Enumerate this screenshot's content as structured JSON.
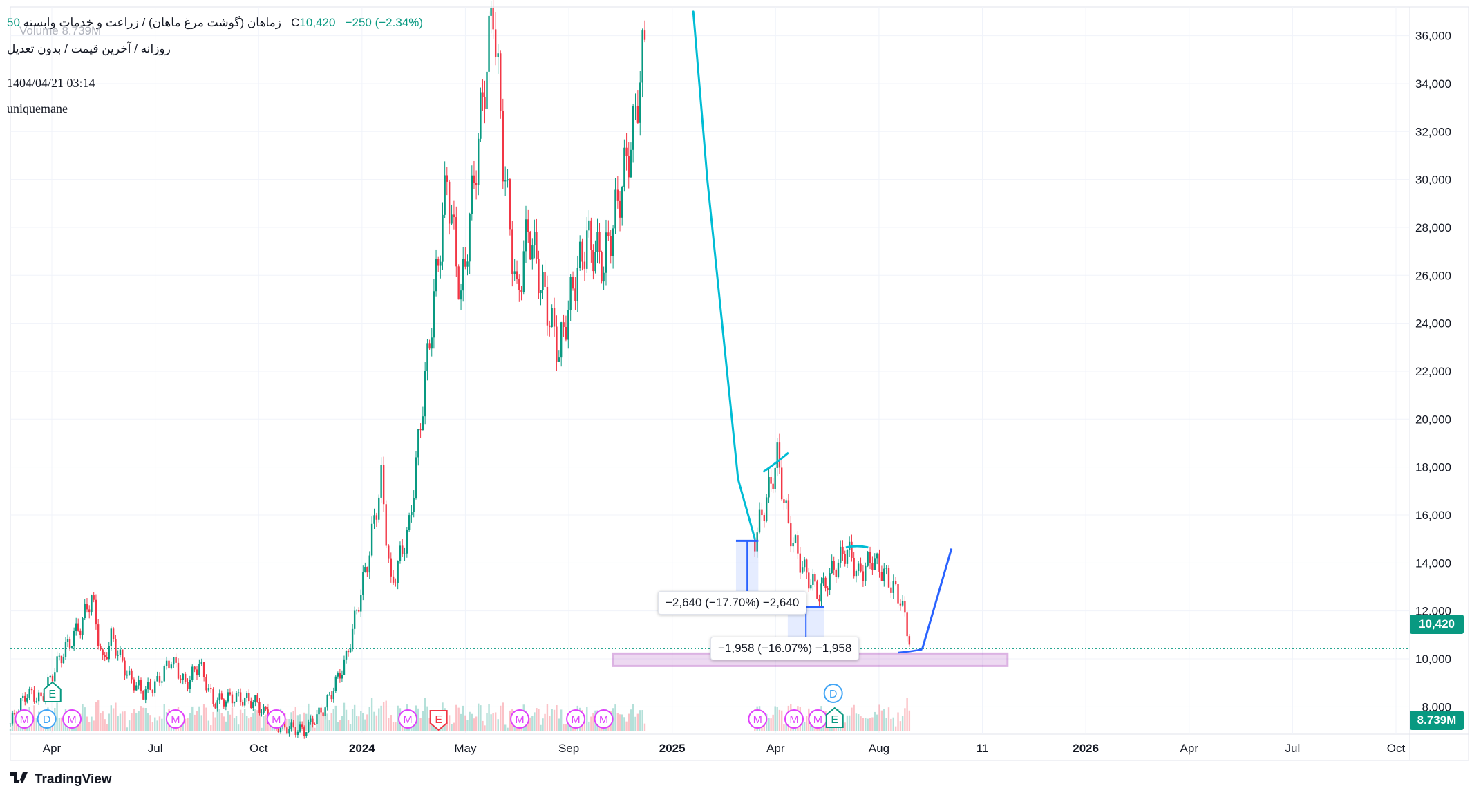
{
  "legend": {
    "symbol_line": "زماهان (گوشت مرغ ماهان) / زراعت و خدمات وابسته",
    "ohlc_prefix_value": "50",
    "close_label": "C",
    "close_value": "10,420",
    "change": "−250 (−2.34%)",
    "volume_label": "Volume",
    "volume_value": "8.739M",
    "interval_line": "روزانه / آخرین قیمت / بدون تعدیل"
  },
  "meta": {
    "date": "1404/04/21 03:14",
    "author": "uniquemane"
  },
  "brand": {
    "name": "TradingView",
    "logo_icon": "tradingview-logo-icon"
  },
  "price_tag": {
    "value": "10,420",
    "color": "#089981"
  },
  "volume_tag": {
    "value": "8.739M",
    "color": "#089981"
  },
  "measure_labels": [
    {
      "text": "−2,640 (−17.70%) −2,640"
    },
    {
      "text": "−1,958 (−16.07%) −1,958"
    }
  ],
  "colors": {
    "up": "#089981",
    "down": "#f23645",
    "drawing_cyan": "#00bcd4",
    "drawing_blue": "#2962ff",
    "support_zone": "#9c27b0"
  },
  "chart_data": {
    "type": "candlestick",
    "y_axis": {
      "ticks": [
        "8,000",
        "10,000",
        "12,000",
        "14,000",
        "16,000",
        "18,000",
        "20,000",
        "22,000",
        "24,000",
        "26,000",
        "28,000",
        "30,000",
        "32,000",
        "34,000",
        "36,000"
      ],
      "range": [
        7000,
        37200
      ]
    },
    "x_axis": {
      "ticks": [
        {
          "label": "Apr",
          "bold": false
        },
        {
          "label": "Jul",
          "bold": false
        },
        {
          "label": "Oct",
          "bold": false
        },
        {
          "label": "2024",
          "bold": true
        },
        {
          "label": "May",
          "bold": false
        },
        {
          "label": "Sep",
          "bold": false
        },
        {
          "label": "2025",
          "bold": true
        },
        {
          "label": "Apr",
          "bold": false
        },
        {
          "label": "Aug",
          "bold": false
        },
        {
          "label": "11",
          "bold": false
        },
        {
          "label": "2026",
          "bold": true
        },
        {
          "label": "Apr",
          "bold": false
        },
        {
          "label": "Jul",
          "bold": false
        },
        {
          "label": "Oct",
          "bold": false
        }
      ]
    },
    "price_path": [
      {
        "t": 0.0,
        "p": 7300
      },
      {
        "t": 0.012,
        "p": 8600
      },
      {
        "t": 0.022,
        "p": 8300
      },
      {
        "t": 0.035,
        "p": 10000
      },
      {
        "t": 0.05,
        "p": 11400
      },
      {
        "t": 0.058,
        "p": 12600
      },
      {
        "t": 0.066,
        "p": 9800
      },
      {
        "t": 0.072,
        "p": 10900
      },
      {
        "t": 0.085,
        "p": 9200
      },
      {
        "t": 0.095,
        "p": 8600
      },
      {
        "t": 0.105,
        "p": 9000
      },
      {
        "t": 0.115,
        "p": 10000
      },
      {
        "t": 0.125,
        "p": 8900
      },
      {
        "t": 0.135,
        "p": 9800
      },
      {
        "t": 0.145,
        "p": 8200
      },
      {
        "t": 0.16,
        "p": 8400
      },
      {
        "t": 0.175,
        "p": 8200
      },
      {
        "t": 0.19,
        "p": 7200
      },
      {
        "t": 0.21,
        "p": 7000
      },
      {
        "t": 0.225,
        "p": 8000
      },
      {
        "t": 0.24,
        "p": 10000
      },
      {
        "t": 0.255,
        "p": 14000
      },
      {
        "t": 0.265,
        "p": 17500
      },
      {
        "t": 0.272,
        "p": 13000
      },
      {
        "t": 0.285,
        "p": 15500
      },
      {
        "t": 0.298,
        "p": 22500
      },
      {
        "t": 0.312,
        "p": 30000
      },
      {
        "t": 0.322,
        "p": 25000
      },
      {
        "t": 0.336,
        "p": 32500
      },
      {
        "t": 0.345,
        "p": 37300
      },
      {
        "t": 0.352,
        "p": 31000
      },
      {
        "t": 0.362,
        "p": 25000
      },
      {
        "t": 0.37,
        "p": 28000
      },
      {
        "t": 0.382,
        "p": 25000
      },
      {
        "t": 0.392,
        "p": 22800
      },
      {
        "t": 0.402,
        "p": 25500
      },
      {
        "t": 0.412,
        "p": 27500
      },
      {
        "t": 0.424,
        "p": 26500
      },
      {
        "t": 0.434,
        "p": 29000
      },
      {
        "t": 0.445,
        "p": 32000
      },
      {
        "t": 0.455,
        "p": 36500
      }
    ],
    "gap_segment": [
      {
        "t": 0.488,
        "p": 37000
      },
      {
        "t": 0.498,
        "p": 30000
      },
      {
        "t": 0.52,
        "p": 17500
      }
    ],
    "recent_path": [
      {
        "t": 0.532,
        "p": 15000
      },
      {
        "t": 0.542,
        "p": 17000
      },
      {
        "t": 0.548,
        "p": 18400
      },
      {
        "t": 0.556,
        "p": 15500
      },
      {
        "t": 0.566,
        "p": 13800
      },
      {
        "t": 0.578,
        "p": 12700
      },
      {
        "t": 0.59,
        "p": 13900
      },
      {
        "t": 0.598,
        "p": 14600
      },
      {
        "t": 0.606,
        "p": 13500
      },
      {
        "t": 0.616,
        "p": 14200
      },
      {
        "t": 0.626,
        "p": 13400
      },
      {
        "t": 0.636,
        "p": 12500
      },
      {
        "t": 0.644,
        "p": 10420
      }
    ],
    "event_badges": [
      {
        "t": 0.01,
        "label": "M",
        "kind": "M"
      },
      {
        "t": 0.026,
        "label": "D",
        "kind": "D"
      },
      {
        "t": 0.044,
        "label": "M",
        "kind": "M"
      },
      {
        "t": 0.03,
        "label": "E",
        "kind": "E-up"
      },
      {
        "t": 0.118,
        "label": "M",
        "kind": "M"
      },
      {
        "t": 0.19,
        "label": "M",
        "kind": "M"
      },
      {
        "t": 0.284,
        "label": "M",
        "kind": "M"
      },
      {
        "t": 0.306,
        "label": "E",
        "kind": "E-down"
      },
      {
        "t": 0.364,
        "label": "M",
        "kind": "M"
      },
      {
        "t": 0.404,
        "label": "M",
        "kind": "M"
      },
      {
        "t": 0.424,
        "label": "M",
        "kind": "M"
      },
      {
        "t": 0.534,
        "label": "M",
        "kind": "M"
      },
      {
        "t": 0.56,
        "label": "M",
        "kind": "M"
      },
      {
        "t": 0.577,
        "label": "M",
        "kind": "M"
      },
      {
        "t": 0.589,
        "label": "E",
        "kind": "E-up"
      },
      {
        "t": 0.588,
        "label": "D",
        "kind": "D"
      }
    ]
  }
}
